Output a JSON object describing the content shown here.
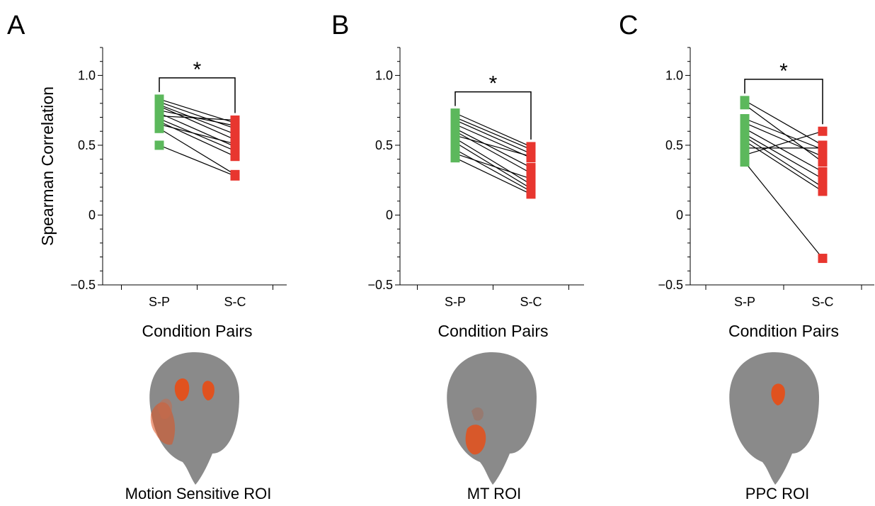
{
  "panels": [
    {
      "letter": "A",
      "roi_label": "Motion Sensitive ROI"
    },
    {
      "letter": "B",
      "roi_label": "MT ROI"
    },
    {
      "letter": "C",
      "roi_label": "PPC ROI"
    }
  ],
  "colors": {
    "sp": "#5cb85c",
    "sc": "#e8362f",
    "brain": "#8a8a8a",
    "roi": "#e0521f"
  },
  "chart_data": [
    {
      "type": "scatter",
      "ylabel": "Spearman Correlation",
      "xlabel": "Condition Pairs",
      "categories": [
        "S-P",
        "S-C"
      ],
      "yticks": [
        "1.0",
        "0.5",
        "0",
        "−0.5"
      ],
      "ytick_values": [
        1.0,
        0.5,
        0,
        -0.5
      ],
      "ylim": [
        -0.5,
        1.2
      ],
      "significance": "*",
      "pairs": [
        [
          0.83,
          0.66
        ],
        [
          0.81,
          0.62
        ],
        [
          0.79,
          0.58
        ],
        [
          0.78,
          0.54
        ],
        [
          0.75,
          0.64
        ],
        [
          0.73,
          0.49
        ],
        [
          0.71,
          0.68
        ],
        [
          0.69,
          0.46
        ],
        [
          0.67,
          0.42
        ],
        [
          0.65,
          0.51
        ],
        [
          0.62,
          0.29
        ],
        [
          0.5,
          0.28
        ]
      ],
      "sp_values": [
        0.83,
        0.81,
        0.79,
        0.78,
        0.75,
        0.73,
        0.71,
        0.69,
        0.67,
        0.65,
        0.62,
        0.5
      ],
      "sc_values": [
        0.68,
        0.66,
        0.64,
        0.62,
        0.58,
        0.54,
        0.51,
        0.49,
        0.46,
        0.42,
        0.29,
        0.28
      ]
    },
    {
      "type": "scatter",
      "ylabel": "",
      "xlabel": "Condition Pairs",
      "categories": [
        "S-P",
        "S-C"
      ],
      "yticks": [
        "1.0",
        "0.5",
        "0",
        "−0.5"
      ],
      "ytick_values": [
        1.0,
        0.5,
        0,
        -0.5
      ],
      "ylim": [
        -0.5,
        1.2
      ],
      "significance": "*",
      "pairs": [
        [
          0.73,
          0.49
        ],
        [
          0.7,
          0.47
        ],
        [
          0.68,
          0.44
        ],
        [
          0.65,
          0.41
        ],
        [
          0.62,
          0.34
        ],
        [
          0.6,
          0.3
        ],
        [
          0.57,
          0.42
        ],
        [
          0.55,
          0.22
        ],
        [
          0.52,
          0.19
        ],
        [
          0.47,
          0.17
        ],
        [
          0.44,
          0.26
        ],
        [
          0.41,
          0.15
        ]
      ],
      "sp_values": [
        0.73,
        0.7,
        0.68,
        0.65,
        0.62,
        0.6,
        0.57,
        0.55,
        0.52,
        0.47,
        0.44,
        0.41
      ],
      "sc_values": [
        0.49,
        0.47,
        0.44,
        0.42,
        0.41,
        0.34,
        0.3,
        0.26,
        0.22,
        0.19,
        0.17,
        0.15
      ]
    },
    {
      "type": "scatter",
      "ylabel": "",
      "xlabel": "Condition Pairs",
      "categories": [
        "S-P",
        "S-C"
      ],
      "yticks": [
        "1.0",
        "0.5",
        "0",
        "−0.5"
      ],
      "ytick_values": [
        1.0,
        0.5,
        0,
        -0.5
      ],
      "ylim": [
        -0.5,
        1.2
      ],
      "significance": "*",
      "pairs": [
        [
          0.82,
          0.5
        ],
        [
          0.79,
          0.38
        ],
        [
          0.69,
          0.47
        ],
        [
          0.66,
          0.42
        ],
        [
          0.62,
          0.31
        ],
        [
          0.58,
          0.26
        ],
        [
          0.56,
          0.2
        ],
        [
          0.53,
          0.17
        ],
        [
          0.48,
          0.48
        ],
        [
          0.43,
          0.6
        ],
        [
          0.38,
          -0.31
        ]
      ],
      "sp_values": [
        0.82,
        0.79,
        0.69,
        0.66,
        0.62,
        0.58,
        0.56,
        0.53,
        0.48,
        0.43,
        0.38
      ],
      "sc_values": [
        0.6,
        0.5,
        0.48,
        0.47,
        0.42,
        0.38,
        0.31,
        0.26,
        0.2,
        0.17,
        -0.31
      ]
    }
  ]
}
